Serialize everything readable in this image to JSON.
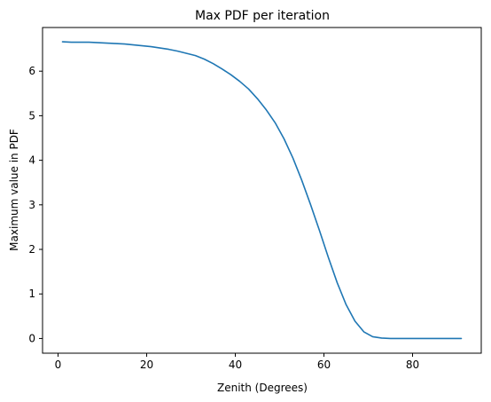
{
  "chart_data": {
    "type": "line",
    "title": "Max PDF per iteration",
    "xlabel": "Zenith (Degrees)",
    "ylabel": "Maximum value in PDF",
    "xlim": [
      -3.5,
      95.5
    ],
    "ylim": [
      -0.33,
      6.98
    ],
    "xticks": [
      0,
      20,
      40,
      60,
      80
    ],
    "yticks": [
      0,
      1,
      2,
      3,
      4,
      5,
      6
    ],
    "grid": false,
    "line_color": "#1f77b4",
    "series": [
      {
        "x": [
          1,
          3,
          5,
          7,
          9,
          11,
          13,
          15,
          17,
          19,
          21,
          23,
          25,
          27,
          29,
          31,
          33,
          35,
          37,
          39,
          41,
          43,
          45,
          47,
          49,
          51,
          53,
          55,
          57,
          59,
          61,
          63,
          65,
          67,
          69,
          71,
          73,
          75,
          77,
          80,
          85,
          91
        ],
        "y": [
          6.66,
          6.65,
          6.65,
          6.65,
          6.64,
          6.63,
          6.62,
          6.61,
          6.59,
          6.57,
          6.55,
          6.52,
          6.49,
          6.45,
          6.4,
          6.35,
          6.27,
          6.17,
          6.05,
          5.92,
          5.77,
          5.6,
          5.38,
          5.13,
          4.84,
          4.48,
          4.05,
          3.55,
          3.0,
          2.42,
          1.82,
          1.25,
          0.76,
          0.39,
          0.15,
          0.04,
          0.01,
          0.0,
          0.0,
          0.0,
          0.0,
          0.0
        ]
      }
    ]
  }
}
